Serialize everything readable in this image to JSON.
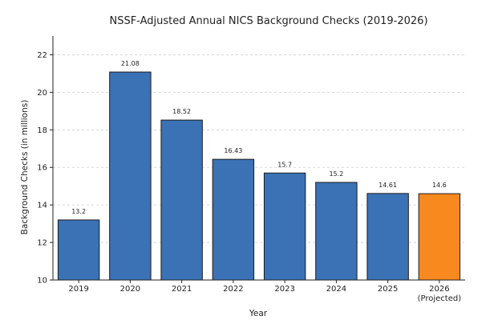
{
  "chart_data": {
    "type": "bar",
    "title": "NSSF-Adjusted Annual NICS Background Checks (2019-2026)",
    "xlabel": "Year",
    "ylabel": "Background Checks (in millions)",
    "categories": [
      "2019",
      "2020",
      "2021",
      "2022",
      "2023",
      "2024",
      "2025",
      "2026\n(Projected)"
    ],
    "values": [
      13.2,
      21.08,
      18.52,
      16.43,
      15.7,
      15.2,
      14.61,
      14.6
    ],
    "value_labels": [
      "13.2",
      "21.08",
      "18.52",
      "16.43",
      "15.7",
      "15.2",
      "14.61",
      "14.6"
    ],
    "ylim": [
      10,
      23
    ],
    "yticks": [
      10,
      12,
      14,
      16,
      18,
      20,
      22
    ],
    "grid": true,
    "colors": {
      "bar": "#3a72b5",
      "projected": "#f7891f"
    },
    "highlight_index": 7
  }
}
